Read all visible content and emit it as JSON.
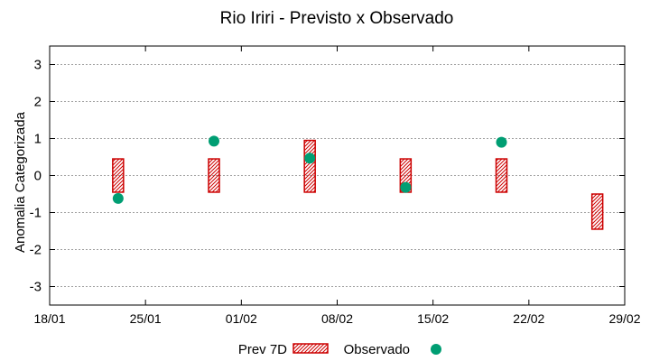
{
  "chart_data": {
    "type": "scatter",
    "title": "Rio Iriri - Previsto x Observado",
    "xlabel": "",
    "ylabel": "Anomalia Categorizada",
    "ylim": [
      -3.5,
      3.5
    ],
    "yticks": [
      -3,
      -2,
      -1,
      0,
      1,
      2,
      3
    ],
    "ytick_labels": [
      "-3",
      "-2",
      "-1",
      "0",
      "1",
      "2",
      "3"
    ],
    "xlim_days": [
      0,
      42
    ],
    "xticks_days": [
      0,
      7,
      14,
      21,
      28,
      35,
      42
    ],
    "xtick_labels": [
      "18/01",
      "25/01",
      "01/02",
      "08/02",
      "15/02",
      "22/02",
      "29/02"
    ],
    "grid": true,
    "legend_position": "bottom",
    "series": [
      {
        "name": "Prev 7D",
        "kind": "range-box",
        "color": "#cc0000",
        "points": [
          {
            "x_day": 5.0,
            "low": -0.45,
            "high": 0.45
          },
          {
            "x_day": 12.0,
            "low": -0.45,
            "high": 0.45
          },
          {
            "x_day": 19.0,
            "low": -0.45,
            "high": 0.95
          },
          {
            "x_day": 26.0,
            "low": -0.45,
            "high": 0.45
          },
          {
            "x_day": 33.0,
            "low": -0.45,
            "high": 0.45
          },
          {
            "x_day": 40.0,
            "low": -1.45,
            "high": -0.5
          }
        ]
      },
      {
        "name": "Observado",
        "kind": "point",
        "color": "#009e73",
        "points": [
          {
            "x_day": 5.0,
            "y": -0.62
          },
          {
            "x_day": 12.0,
            "y": 0.93
          },
          {
            "x_day": 19.0,
            "y": 0.47
          },
          {
            "x_day": 26.0,
            "y": -0.32
          },
          {
            "x_day": 33.0,
            "y": 0.9
          }
        ]
      }
    ]
  }
}
